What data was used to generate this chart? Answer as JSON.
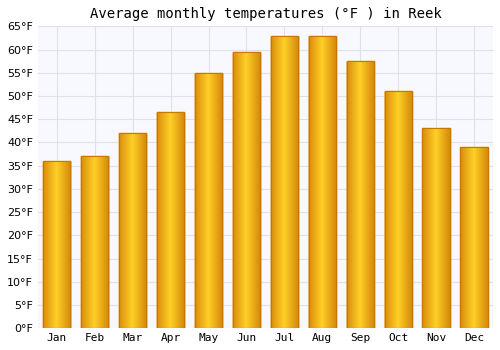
{
  "title": "Average monthly temperatures (°F ) in Reek",
  "months": [
    "Jan",
    "Feb",
    "Mar",
    "Apr",
    "May",
    "Jun",
    "Jul",
    "Aug",
    "Sep",
    "Oct",
    "Nov",
    "Dec"
  ],
  "values": [
    36,
    37,
    42,
    46.5,
    55,
    59.5,
    63,
    63,
    57.5,
    51,
    43,
    39
  ],
  "bar_color_light": "#FFD35A",
  "bar_color_mid": "#FFAA00",
  "bar_color_dark": "#E08000",
  "bar_edge_color": "#C87800",
  "background_color": "#FFFFFF",
  "plot_bg_color": "#F8F8FF",
  "ylim": [
    0,
    65
  ],
  "yticks": [
    0,
    5,
    10,
    15,
    20,
    25,
    30,
    35,
    40,
    45,
    50,
    55,
    60,
    65
  ],
  "ylabel_suffix": "°F",
  "grid_color": "#E0E0E8",
  "title_fontsize": 10,
  "tick_fontsize": 8
}
